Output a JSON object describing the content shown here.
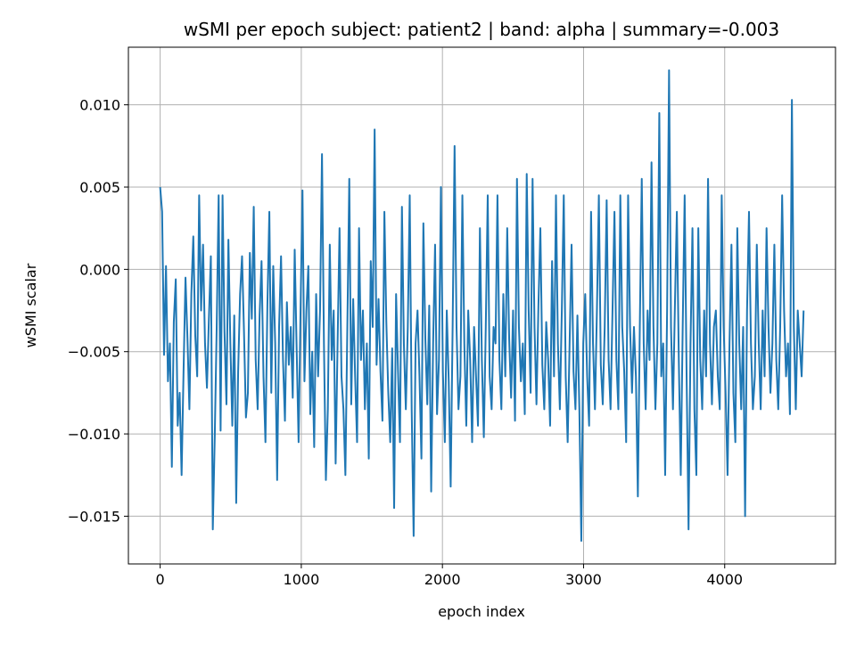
{
  "chart_data": {
    "type": "line",
    "title": "wSMI per epoch subject: patient2 | band: alpha | summary=-0.003",
    "xlabel": "epoch index",
    "ylabel": "wSMI scalar",
    "xlim": [
      -225,
      4785
    ],
    "ylim": [
      -0.0179,
      0.0135
    ],
    "xticks": [
      0,
      1000,
      2000,
      3000,
      4000
    ],
    "xtick_labels": [
      "0",
      "1000",
      "2000",
      "3000",
      "4000"
    ],
    "yticks": [
      -0.015,
      -0.01,
      -0.005,
      0.0,
      0.005,
      0.01
    ],
    "ytick_labels": [
      "−0.015",
      "−0.010",
      "−0.005",
      "0.000",
      "0.005",
      "0.010"
    ],
    "grid": true,
    "color": "#1f77b4",
    "n_points": 4560,
    "series": [
      {
        "x_start": 0,
        "x_step": 1,
        "values": [
          0.005,
          0.0035,
          -0.0052,
          0.0002,
          -0.0068,
          -0.0045,
          -0.012,
          -0.0032,
          -0.0006,
          -0.0095,
          -0.0075,
          -0.0125,
          -0.0062,
          -0.0005,
          -0.0042,
          -0.0085,
          -0.0015,
          0.002,
          -0.004,
          -0.0065,
          0.0045,
          -0.0025,
          0.0015,
          -0.0045,
          -0.0072,
          -0.003,
          0.0008,
          -0.0158,
          -0.0102,
          -0.0035,
          0.0045,
          -0.0098,
          0.0045,
          -0.0038,
          -0.0082,
          0.0018,
          -0.0045,
          -0.0095,
          -0.0028,
          -0.0142,
          -0.0062,
          -0.0015,
          0.0008,
          -0.0038,
          -0.009,
          -0.0075,
          0.001,
          -0.003,
          0.0038,
          -0.0055,
          -0.0085,
          -0.0028,
          0.0005,
          -0.0065,
          -0.0105,
          -0.0022,
          0.0035,
          -0.0075,
          0.0002,
          -0.0045,
          -0.0128,
          -0.0035,
          0.0008,
          -0.0055,
          -0.0092,
          -0.002,
          -0.0058,
          -0.0035,
          -0.0078,
          0.0012,
          -0.0048,
          -0.0105,
          -0.0025,
          0.0048,
          -0.0068,
          -0.0025,
          0.0002,
          -0.0088,
          -0.005,
          -0.0108,
          -0.0015,
          -0.0065,
          -0.0025,
          0.007,
          -0.0045,
          -0.0128,
          -0.0085,
          0.0015,
          -0.0055,
          -0.0025,
          -0.0118,
          -0.0045,
          0.0025,
          -0.0065,
          -0.0085,
          -0.0125,
          -0.0035,
          0.0055,
          -0.0082,
          -0.0018,
          -0.0065,
          -0.0105,
          0.0025,
          -0.0055,
          -0.0025,
          -0.0085,
          -0.0045,
          -0.0115,
          0.0005,
          -0.0035,
          0.0085,
          -0.0058,
          -0.0018,
          -0.0062,
          -0.0092,
          0.0035,
          -0.0032,
          -0.0075,
          -0.0105,
          -0.0048,
          -0.0145,
          -0.0015,
          -0.0062,
          -0.0105,
          0.0038,
          -0.0045,
          -0.0085,
          -0.0035,
          0.0045,
          -0.0085,
          -0.0162,
          -0.0045,
          -0.0025,
          -0.0065,
          -0.0115,
          0.0028,
          -0.0042,
          -0.0082,
          -0.0022,
          -0.0135,
          -0.0045,
          0.0015,
          -0.0088,
          -0.0055,
          0.005,
          -0.0062,
          -0.0105,
          -0.0025,
          -0.0068,
          -0.0132,
          -0.0035,
          0.0075,
          -0.0035,
          -0.0085,
          -0.0065,
          0.0045,
          -0.0045,
          -0.0095,
          -0.0025,
          -0.0055,
          -0.0105,
          -0.0035,
          -0.0065,
          -0.0095,
          0.0025,
          -0.0055,
          -0.0102,
          -0.0035,
          0.0045,
          -0.0065,
          -0.0085,
          -0.0035,
          -0.0045,
          0.0045,
          -0.0055,
          -0.0085,
          -0.0015,
          -0.0065,
          0.0025,
          -0.0042,
          -0.0078,
          -0.0025,
          -0.0092,
          0.0055,
          -0.0035,
          -0.0068,
          -0.0045,
          -0.0088,
          0.0058,
          -0.0025,
          -0.0075,
          0.0055,
          -0.0035,
          -0.0082,
          -0.0022,
          0.0025,
          -0.0058,
          -0.0085,
          -0.0032,
          -0.0055,
          -0.0095,
          0.0005,
          -0.0065,
          0.0045,
          -0.0045,
          -0.0085,
          -0.0025,
          0.0045,
          -0.0065,
          -0.0105,
          -0.0045,
          0.0015,
          -0.0062,
          -0.0085,
          -0.0028,
          -0.0085,
          -0.0165,
          -0.0045,
          -0.0015,
          -0.0065,
          -0.0095,
          0.0035,
          -0.0045,
          -0.0085,
          -0.0025,
          0.0045,
          -0.0058,
          -0.0082,
          -0.0035,
          0.0042,
          -0.0055,
          -0.0085,
          -0.0025,
          0.0035,
          -0.0055,
          -0.0085,
          0.0045,
          -0.0035,
          -0.0062,
          -0.0105,
          0.0045,
          -0.0035,
          -0.0075,
          -0.0035,
          -0.0065,
          -0.0138,
          -0.0035,
          0.0055,
          -0.0045,
          -0.0085,
          -0.0025,
          -0.0055,
          0.0065,
          -0.0035,
          -0.0085,
          -0.0045,
          0.0095,
          -0.0065,
          -0.0045,
          -0.0125,
          -0.0025,
          0.0121,
          -0.0035,
          -0.0085,
          -0.0022,
          0.0035,
          -0.0055,
          -0.0125,
          -0.0035,
          0.0045,
          -0.0065,
          -0.0158,
          -0.0045,
          0.0025,
          -0.0085,
          -0.0125,
          0.0025,
          -0.0055,
          -0.0085,
          -0.0025,
          -0.0065,
          0.0055,
          -0.0045,
          -0.0082,
          -0.0035,
          -0.0025,
          -0.0065,
          -0.0085,
          0.0045,
          -0.0035,
          -0.0075,
          -0.0125,
          -0.0045,
          0.0015,
          -0.0075,
          -0.0105,
          0.0025,
          -0.0045,
          -0.0085,
          -0.0035,
          -0.015,
          -0.0025,
          0.0035,
          -0.0045,
          -0.0085,
          -0.0065,
          0.0015,
          -0.0045,
          -0.0085,
          -0.0025,
          -0.0065,
          0.0025,
          -0.0035,
          -0.0075,
          -0.0045,
          0.0015,
          -0.0055,
          -0.0085,
          -0.0035,
          0.0045,
          -0.0025,
          -0.0065,
          -0.0045,
          -0.0088,
          0.0103,
          -0.0035,
          -0.0085,
          -0.0025,
          -0.0045,
          -0.0065,
          -0.0025
        ]
      }
    ]
  }
}
